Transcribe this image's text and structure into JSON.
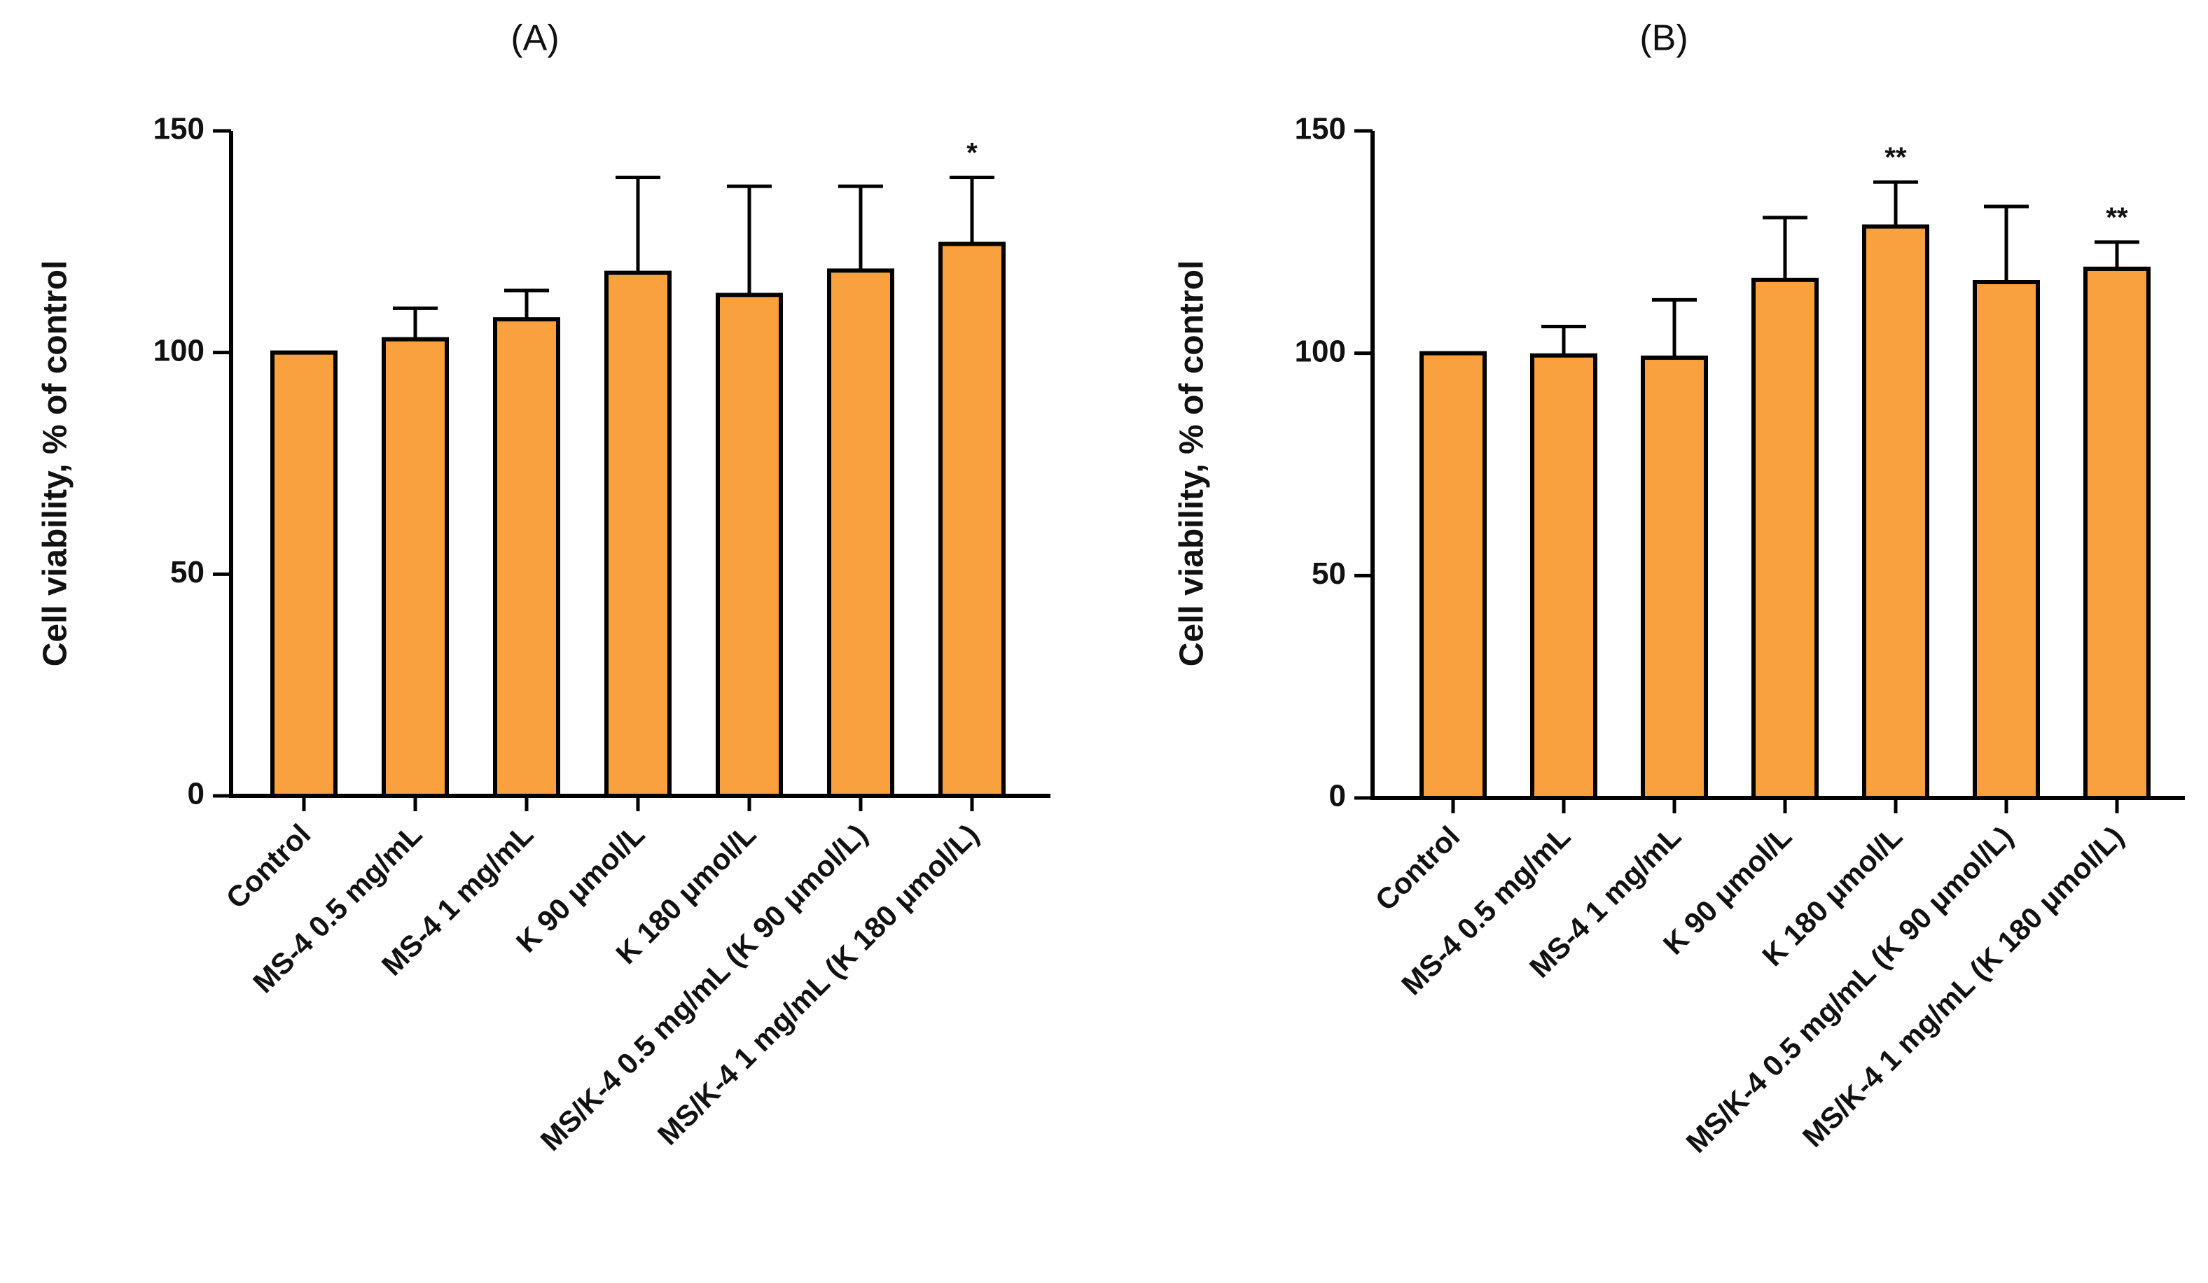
{
  "chart_data": [
    {
      "type": "bar",
      "title": "(A)",
      "xlabel": "",
      "ylabel": "Cell viability, % of control",
      "ylim": [
        0,
        150
      ],
      "yticks": [
        0,
        50,
        100,
        150
      ],
      "categories": [
        "Control",
        "MS-4 0.5 mg/mL",
        "MS-4 1 mg/mL",
        "K 90 μmol/L",
        "K 180 μmol/L",
        "MS/K-4 0.5 mg/mL (K 90 μmol/L)",
        "MS/K-4 1 mg/mL (K 180 μmol/L)"
      ],
      "values": [
        100,
        103,
        107.5,
        118,
        113,
        118.5,
        124.5
      ],
      "error_upper": [
        0,
        7,
        6.5,
        21.5,
        24.5,
        19,
        15
      ],
      "significance": [
        "",
        "",
        "",
        "",
        "",
        "",
        "*"
      ],
      "bar_color": "#F9A03F",
      "grid": false
    },
    {
      "type": "bar",
      "title": "(B)",
      "xlabel": "",
      "ylabel": "Cell viability, % of control",
      "ylim": [
        0,
        150
      ],
      "yticks": [
        0,
        50,
        100,
        150
      ],
      "categories": [
        "Control",
        "MS-4 0.5 mg/mL",
        "MS-4 1 mg/mL",
        "K 90 μmol/L",
        "K 180 μmol/L",
        "MS/K-4 0.5 mg/mL (K 90 μmol/L)",
        "MS/K-4 1 mg/mL (K 180 μmol/L)"
      ],
      "values": [
        100,
        99.5,
        99,
        116.5,
        128.5,
        116,
        119
      ],
      "error_upper": [
        0,
        6.5,
        13,
        14,
        10,
        17,
        6
      ],
      "significance": [
        "",
        "",
        "",
        "",
        "**",
        "",
        "**"
      ],
      "bar_color": "#F9A03F",
      "grid": false
    }
  ]
}
